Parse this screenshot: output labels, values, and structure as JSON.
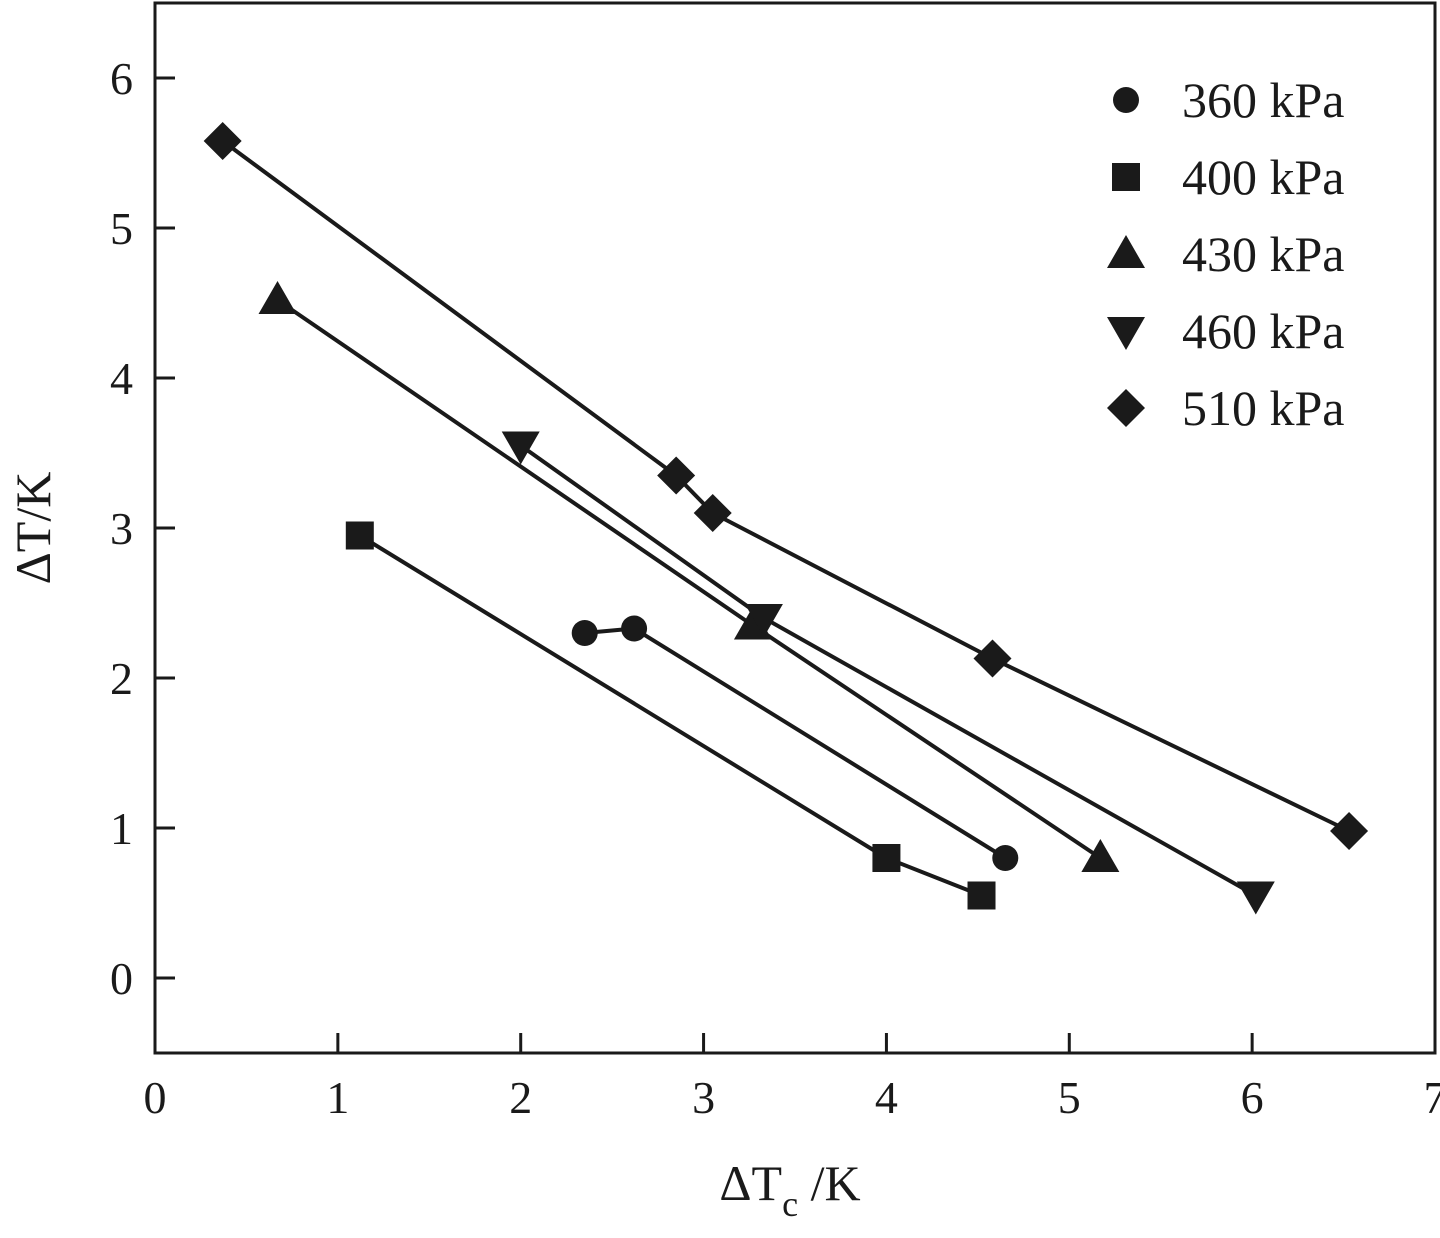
{
  "chart_data": {
    "type": "line",
    "xlabel": {
      "main": "ΔT",
      "sub": "c",
      "unit": " /K"
    },
    "ylabel": "ΔT/K",
    "xlim": [
      0,
      7
    ],
    "ylim": [
      -0.5,
      6.5
    ],
    "xticks": [
      "0",
      "1",
      "2",
      "3",
      "4",
      "5",
      "6",
      "7"
    ],
    "yticks": [
      "0",
      "1",
      "2",
      "3",
      "4",
      "5",
      "6"
    ],
    "grid": false,
    "legend_position": "top-right",
    "colors": {
      "ink": "#1a1a1a",
      "background": "#ffffff"
    },
    "series": [
      {
        "name": "360 kPa",
        "marker": "circle",
        "x": [
          2.35,
          2.62,
          4.65
        ],
        "y": [
          2.3,
          2.33,
          0.8
        ]
      },
      {
        "name": "400 kPa",
        "marker": "square",
        "x": [
          1.12,
          4.0,
          4.52
        ],
        "y": [
          2.95,
          0.8,
          0.55
        ]
      },
      {
        "name": "430 kPa",
        "marker": "triangle-up",
        "x": [
          0.67,
          3.27,
          5.17
        ],
        "y": [
          4.52,
          2.35,
          0.8
        ]
      },
      {
        "name": "460 kPa",
        "marker": "triangle-down",
        "x": [
          2.0,
          3.33,
          6.02
        ],
        "y": [
          3.55,
          2.4,
          0.55
        ]
      },
      {
        "name": "510 kPa",
        "marker": "diamond",
        "x": [
          0.37,
          2.85,
          3.05,
          4.58,
          6.53
        ],
        "y": [
          5.58,
          3.35,
          3.1,
          2.13,
          0.98
        ]
      }
    ]
  }
}
